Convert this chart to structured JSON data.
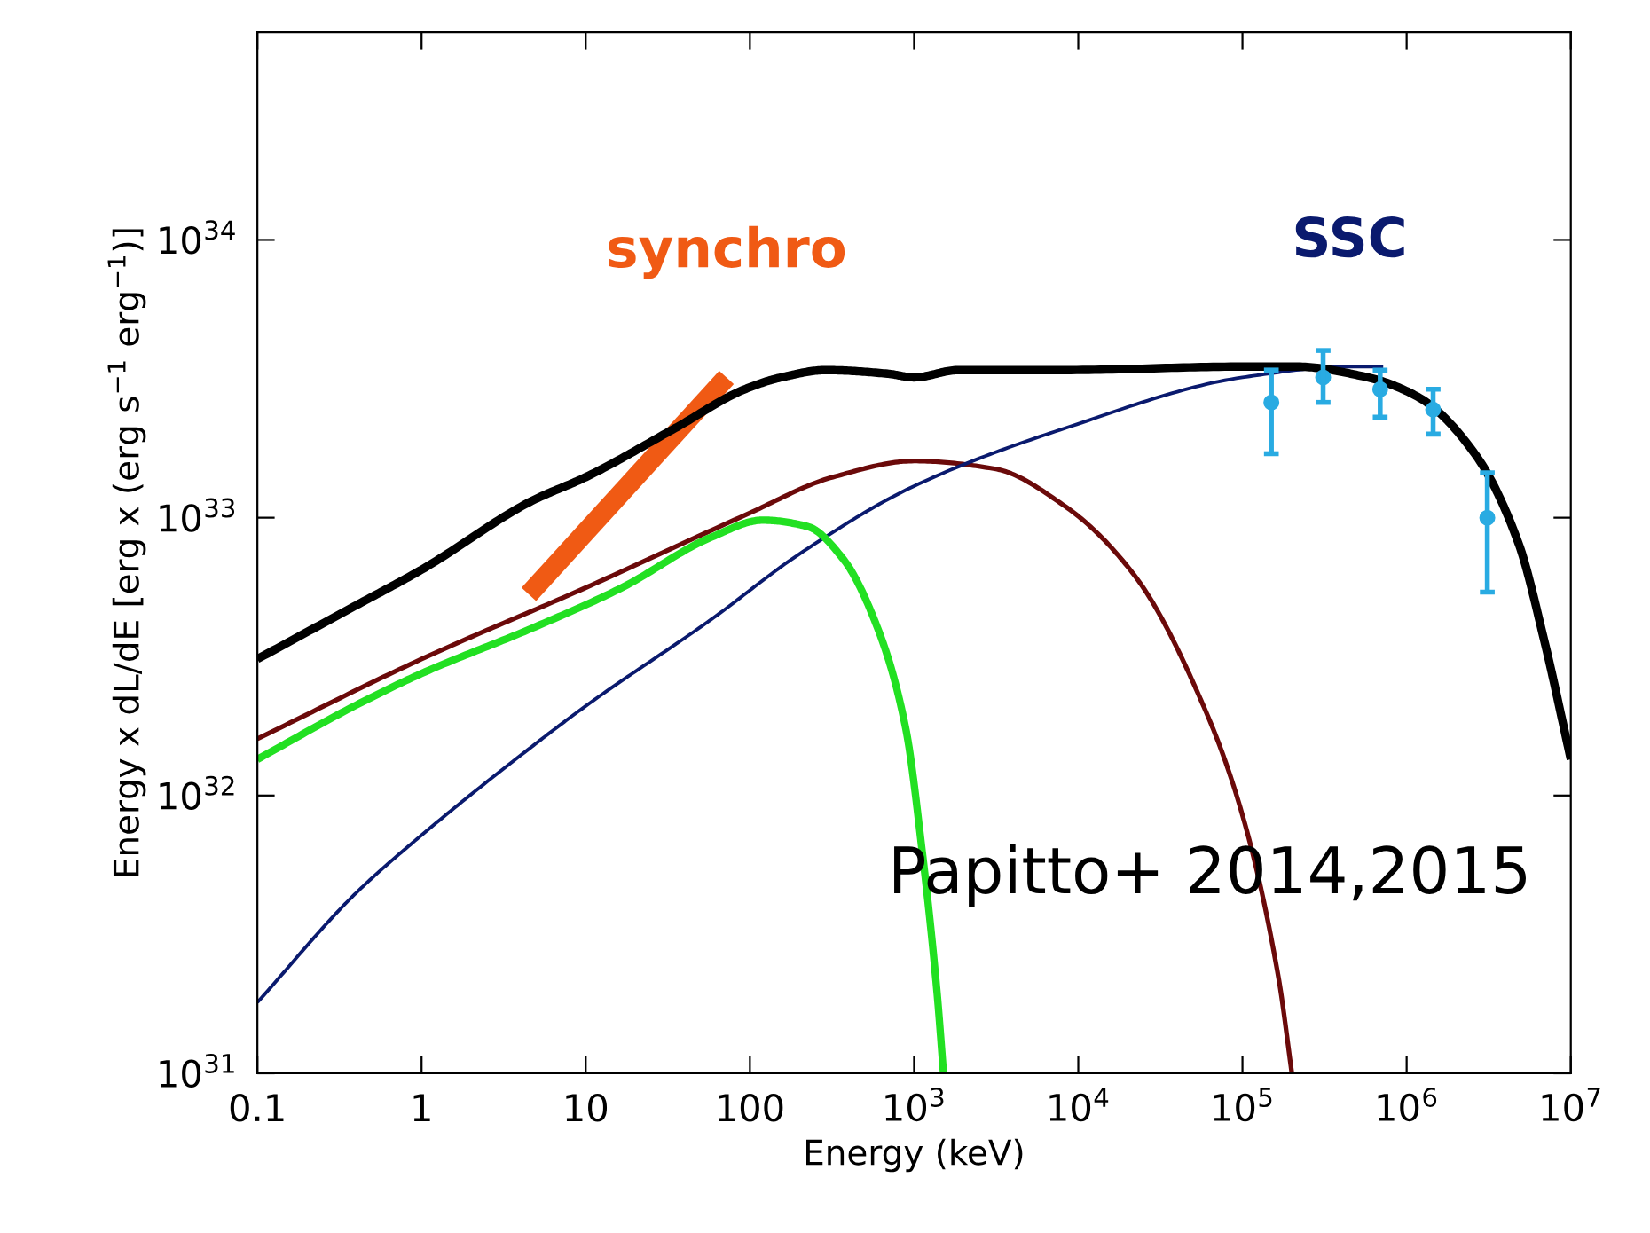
{
  "chart_data": {
    "type": "line",
    "xlabel": "Energy (keV)",
    "ylabel": "Energy x dL/dE [erg x (erg s$^{−1}$ erg$^{−1}$)]",
    "log": "xy",
    "grid": false,
    "legend": false,
    "xlim": [
      0.1,
      10000000
    ],
    "ylim": [
      1e+31,
      5.6e+34
    ],
    "xticks": [
      0.1,
      1,
      10,
      100,
      {
        "value": 1000,
        "label": "10$^{3}$"
      },
      {
        "value": 10000,
        "label": "10$^{4}$"
      },
      {
        "value": 100000,
        "label": "10$^{5}$"
      },
      {
        "value": 1000000,
        "label": "10$^{6}$"
      },
      {
        "value": 10000000,
        "label": "10$^{7}$"
      }
    ],
    "yticks": [
      {
        "value": 1e+31,
        "label": "10$^{31}$"
      },
      {
        "value": 1e+32,
        "label": "10$^{32}$"
      },
      {
        "value": 1e+33,
        "label": "10$^{33}$"
      },
      {
        "value": 1e+34,
        "label": "10$^{34}$"
      }
    ],
    "annotations": [
      "Papitto+ 2014,2015"
    ],
    "series": [
      {
        "name": "synchro",
        "color": "#f05a14",
        "x": [
          4.5,
          72
        ],
        "values": [
          5.3e+32,
          3.2e+33
        ]
      },
      {
        "color": "#6b0a0a",
        "x": [
          0.1,
          1,
          10,
          93,
          320,
          1000,
          3100,
          8300,
          22000,
          60000,
          100000,
          166000,
          200000
        ],
        "values": [
          1.6e+32,
          3.1e+32,
          5.6e+32,
          1.02e+33,
          1.4e+33,
          1.6e+33,
          1.5e+33,
          1.1e+33,
          6.2e+32,
          2e+32,
          8.5e+31,
          2.2e+31,
          1e+31
        ]
      },
      {
        "name": "SSC",
        "color": "#0a1a6e",
        "x": [
          0.1,
          0.39,
          1,
          4.7,
          10,
          58,
          200,
          1000,
          8300,
          100000,
          450000,
          720000
        ],
        "values": [
          1.8e+31,
          4.4e+31,
          7.2e+31,
          1.5e+32,
          2.1e+32,
          4.3e+32,
          7.4e+32,
          1.3e+33,
          2.1e+33,
          3.2e+33,
          3.5e+33,
          3.5e+33
        ]
      },
      {
        "color": "#22e022",
        "x": [
          0.1,
          0.39,
          1,
          4.7,
          16.6,
          58,
          120,
          224,
          370,
          600,
          890,
          1120,
          1380,
          1510
        ],
        "values": [
          1.35e+32,
          2.1e+32,
          2.75e+32,
          4e+32,
          5.6e+32,
          8.5e+32,
          9.8e+32,
          9.3e+32,
          7.1e+32,
          4e+32,
          1.74e+32,
          6.3e+31,
          1.95e+31,
          1e+31
        ]
      },
      {
        "color": "#000000",
        "x": [
          0.1,
          0.39,
          1,
          4.7,
          10,
          35,
          93,
          155,
          290,
          690,
          1000,
          1860,
          8300,
          100000,
          210000,
          580000,
          1200000,
          2600000,
          4800000,
          6900000,
          10000000
        ],
        "values": [
          3.1e+32,
          4.8e+32,
          6.5e+32,
          1.15e+33,
          1.4e+33,
          2.1e+33,
          2.9e+33,
          3.2e+33,
          3.4e+33,
          3.3e+33,
          3.2e+33,
          3.4e+33,
          3.4e+33,
          3.5e+33,
          3.5e+33,
          3.2e+33,
          2.7e+33,
          1.7e+33,
          8.1e+32,
          3.6e+32,
          1.35e+32
        ]
      },
      {
        "type": "scatter",
        "marker": "circle",
        "color": "#29abe2",
        "x": [
          150000,
          310000,
          690000,
          1450000,
          3100000
        ],
        "values": [
          2.6e+33,
          3.2e+33,
          2.9e+33,
          2.45e+33,
          1e+33
        ],
        "errors": [
          [
            1.7e+33,
            3.4e+33
          ],
          [
            2.6e+33,
            4e+33
          ],
          [
            2.3e+33,
            3.4e+33
          ],
          [
            2e+33,
            2.9e+33
          ],
          [
            5.4e+32,
            1.45e+33
          ]
        ]
      }
    ]
  }
}
